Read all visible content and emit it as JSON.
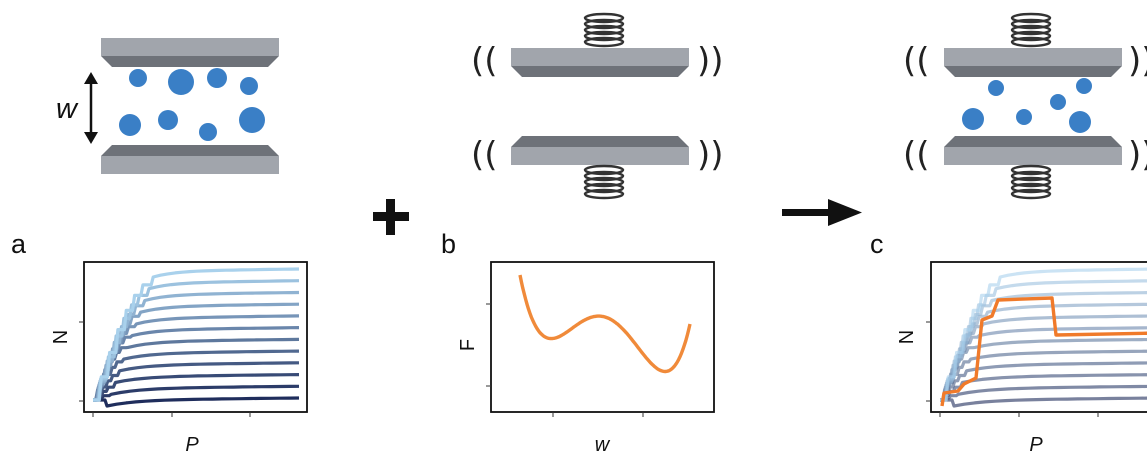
{
  "width_symbol": "w",
  "operator_symbols": {
    "plus": "+",
    "arrow": "→"
  },
  "vibration_glyphs": {
    "left": "((",
    "right": "))"
  },
  "colors": {
    "plate_light": "#9fa3aa",
    "plate_dark": "#6f737a",
    "particle": "#3a7fc6",
    "free_energy": "#f08a3a",
    "driven_path": "#f07a2a",
    "spring": "#333333",
    "blues_dark": "#1f2d5c",
    "blues_light": "#a9d1ec"
  },
  "chart_data": [
    {
      "panel": "a",
      "type": "line",
      "xlabel": "P",
      "ylabel": "N",
      "series_count": 12,
      "style": "adsorption isotherms (particle number vs pressure) at increasing pore widths; each curve rises in steps then saturates at a successively higher plateau; colors run from dark navy (narrowest pore) to light blue (widest pore)"
    },
    {
      "panel": "b",
      "type": "line",
      "xlabel": "w",
      "ylabel": "F",
      "style": "double-well free energy: two minima (second deeper) separated by a barrier",
      "landmarks": [
        "left minimum",
        "barrier",
        "deeper right minimum"
      ]
    },
    {
      "panel": "c",
      "type": "line",
      "xlabel": "P",
      "ylabel": "N",
      "series_count": 12,
      "style": "same isotherm family as panel a, faded; overlaid orange path follows a low plateau, jumps up to a high plateau, then drops down to an intermediate plateau as pressure increases"
    }
  ],
  "panels": [
    {
      "letter": "a"
    },
    {
      "letter": "b"
    },
    {
      "letter": "c"
    }
  ]
}
